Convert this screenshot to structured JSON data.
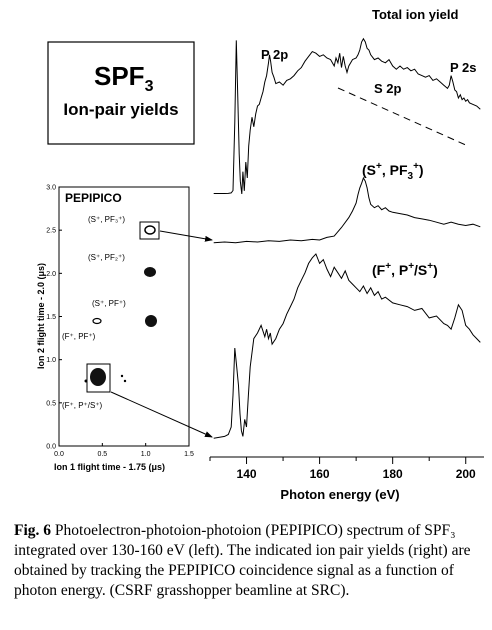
{
  "title_box": {
    "formula_main": "SPF",
    "formula_sub": "3",
    "subtitle": "Ion-pair yields"
  },
  "curve_labels": {
    "total": "Total ion yield",
    "p2p": "P 2p",
    "s2p": "S 2p",
    "p2s": "P 2s",
    "spf3": {
      "a": "(S",
      "sup1": "+",
      "b": ", PF",
      "sub": "3",
      "sup2": "+",
      "c": ")"
    },
    "fps": {
      "a": "(F",
      "sup1": "+",
      "b": ", P",
      "sup2": "+",
      "c": "/S",
      "sup3": "+",
      "d": ")"
    }
  },
  "inset": {
    "title": "PEPIPICO",
    "xlabel": "Ion 1 flight time - 1.75 (μs)",
    "ylabel": "Ion 2 flight time - 2.0 (μs)",
    "xticks": [
      "0.0",
      "0.5",
      "1.0",
      "1.5"
    ],
    "yticks": [
      "0.0",
      "0.5",
      "1.0",
      "1.5",
      "2.0",
      "2.5",
      "3.0"
    ],
    "labels": {
      "spf3": "(S⁺, PF₃⁺)",
      "spf2": "(S⁺, PF₂⁺)",
      "spf": "(S⁺, PF⁺)",
      "fpf": "(F⁺, PF⁺)",
      "fps": "(F⁺, P⁺/S⁺)"
    }
  },
  "chart_data": {
    "type": "line",
    "xlabel": "Photon energy (eV)",
    "xlim": [
      130,
      205
    ],
    "xticks": [
      "140",
      "160",
      "180",
      "200"
    ],
    "series": [
      {
        "name": "Total ion yield",
        "x": [
          131,
          134,
          135,
          135.8,
          136.3,
          136.8,
          137.2,
          137.6,
          138,
          138.3,
          138.7,
          139,
          139.4,
          139.8,
          140.2,
          140.6,
          141,
          141.5,
          142,
          142.5,
          143,
          143.5,
          144,
          144.5,
          145,
          145.5,
          146,
          146.3,
          146.6,
          147,
          147.5,
          148,
          149,
          150,
          151,
          152,
          153,
          154,
          155,
          156,
          157,
          158,
          159,
          160,
          161,
          162,
          163,
          164,
          164.5,
          165,
          165.5,
          166,
          166.5,
          167,
          167.5,
          168,
          169,
          170,
          170.5,
          171,
          171.5,
          172,
          172.5,
          173,
          173.5,
          174,
          175,
          176,
          177,
          178,
          179,
          180,
          181,
          182,
          183,
          184,
          185,
          186,
          187,
          188,
          189,
          190,
          191,
          192,
          193,
          194,
          195,
          195.5,
          196,
          196.5,
          197,
          197.5,
          198,
          198.5,
          199,
          199.5,
          200,
          200.5,
          201,
          202,
          203,
          204
        ],
        "y": [
          0.003,
          0.003,
          0.004,
          0.007,
          0.022,
          0.45,
          0.96,
          0.6,
          0.25,
          0.08,
          0.0,
          0.14,
          0.02,
          0.2,
          0.1,
          0.3,
          0.4,
          0.48,
          0.42,
          0.5,
          0.55,
          0.56,
          0.6,
          0.64,
          0.7,
          0.74,
          0.82,
          0.87,
          0.83,
          0.76,
          0.73,
          0.69,
          0.7,
          0.68,
          0.71,
          0.72,
          0.74,
          0.77,
          0.79,
          0.83,
          0.86,
          0.89,
          0.88,
          0.86,
          0.87,
          0.85,
          0.84,
          0.8,
          0.85,
          0.82,
          0.88,
          0.79,
          0.86,
          0.8,
          0.76,
          0.8,
          0.84,
          0.85,
          0.87,
          0.9,
          0.95,
          0.97,
          0.95,
          0.91,
          0.9,
          0.87,
          0.84,
          0.85,
          0.83,
          0.82,
          0.84,
          0.8,
          0.78,
          0.8,
          0.78,
          0.79,
          0.77,
          0.78,
          0.75,
          0.74,
          0.73,
          0.74,
          0.71,
          0.72,
          0.7,
          0.68,
          0.66,
          0.68,
          0.74,
          0.7,
          0.65,
          0.64,
          0.6,
          0.62,
          0.59,
          0.6,
          0.58,
          0.59,
          0.57,
          0.56,
          0.55,
          0.53
        ]
      },
      {
        "name": "(S+, PF3+)",
        "x": [
          131,
          134,
          137,
          140,
          143,
          146,
          149,
          152,
          155,
          158,
          160,
          162,
          164,
          166,
          168,
          169,
          170,
          170.5,
          171,
          171.5,
          172,
          172.5,
          173,
          173.5,
          174,
          175,
          176,
          177,
          178,
          179,
          180,
          182,
          184,
          186,
          188,
          190,
          192,
          194,
          196,
          198,
          200,
          202,
          204
        ],
        "y": [
          0.02,
          0.03,
          0.02,
          0.04,
          0.03,
          0.05,
          0.04,
          0.06,
          0.05,
          0.07,
          0.06,
          0.1,
          0.12,
          0.25,
          0.4,
          0.5,
          0.62,
          0.75,
          0.85,
          0.92,
          1.0,
          0.95,
          0.85,
          0.7,
          0.6,
          0.55,
          0.58,
          0.52,
          0.55,
          0.5,
          0.48,
          0.46,
          0.44,
          0.4,
          0.38,
          0.36,
          0.33,
          0.3,
          0.33,
          0.3,
          0.28,
          0.3,
          0.26
        ]
      },
      {
        "name": "(F+, P+/S+)",
        "x": [
          131,
          134,
          135,
          135.8,
          136.3,
          136.8,
          137.3,
          137.8,
          138.2,
          138.6,
          139,
          139.5,
          140,
          140.5,
          141,
          142,
          143,
          144,
          145,
          145.5,
          146,
          146.5,
          147,
          148,
          149,
          150,
          151,
          152,
          153,
          154,
          155,
          156,
          157,
          158,
          159,
          160,
          161,
          162,
          163,
          164,
          165,
          166,
          167,
          168,
          169,
          170,
          171,
          172,
          173,
          174,
          175,
          176,
          177,
          178,
          180,
          182,
          184,
          186,
          188,
          190,
          192,
          194,
          195,
          196,
          197,
          198,
          199,
          200,
          201,
          202,
          203,
          204
        ],
        "y": [
          0.02,
          0.03,
          0.04,
          0.08,
          0.25,
          0.5,
          0.4,
          0.3,
          0.15,
          0.06,
          0.03,
          0.12,
          0.08,
          0.25,
          0.4,
          0.55,
          0.58,
          0.62,
          0.56,
          0.6,
          0.55,
          0.58,
          0.52,
          0.55,
          0.6,
          0.63,
          0.68,
          0.72,
          0.76,
          0.82,
          0.86,
          0.9,
          0.95,
          0.98,
          1.0,
          0.95,
          0.97,
          0.92,
          0.88,
          0.93,
          0.9,
          0.87,
          0.91,
          0.86,
          0.84,
          0.82,
          0.8,
          0.83,
          0.79,
          0.82,
          0.78,
          0.8,
          0.76,
          0.77,
          0.74,
          0.73,
          0.72,
          0.7,
          0.71,
          0.66,
          0.67,
          0.63,
          0.62,
          0.6,
          0.66,
          0.73,
          0.7,
          0.62,
          0.6,
          0.57,
          0.55,
          0.53
        ]
      }
    ]
  },
  "caption": {
    "fig": "Fig. 6",
    "text": " Photoelectron-photoion-photoion (PEPIPICO) spectrum of SPF₃ integrated over 130-160 eV (left). The indicated ion pair yields (right) are obtained by tracking the PEPIPICO coincidence signal as a function of photon energy. (CSRF grasshopper beamline at SRC)."
  }
}
